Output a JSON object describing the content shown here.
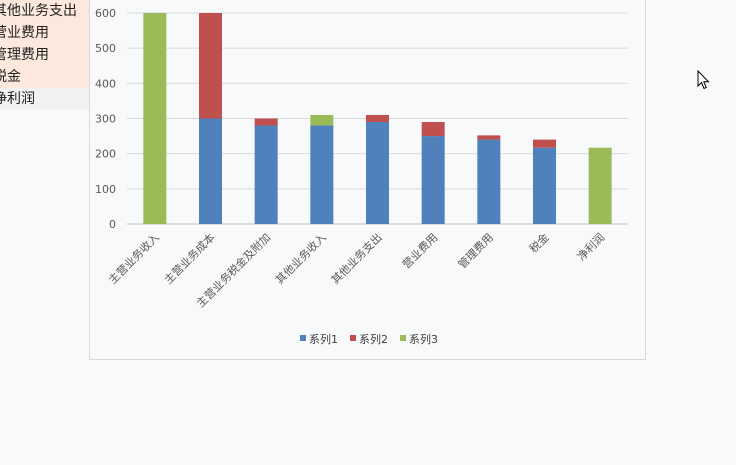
{
  "sheet": {
    "cells": [
      "其他业务支出",
      "营业费用",
      "管理费用",
      "税金",
      "净利润"
    ]
  },
  "chart_data": {
    "type": "bar",
    "stacked": true,
    "categories": [
      "主营业务收入",
      "主营业务成本",
      "主营业务税金及附加",
      "其他业务收入",
      "其他业务支出",
      "营业费用",
      "管理费用",
      "税金",
      "净利润"
    ],
    "series": [
      {
        "name": "系列1",
        "color": "#4f81bd",
        "values": [
          0,
          300,
          280,
          280,
          290,
          250,
          240,
          217,
          0
        ]
      },
      {
        "name": "系列2",
        "color": "#c0504d",
        "values": [
          0,
          300,
          20,
          0,
          20,
          40,
          12,
          23,
          0
        ]
      },
      {
        "name": "系列3",
        "color": "#9bbb59",
        "values": [
          600,
          0,
          0,
          30,
          0,
          0,
          0,
          0,
          217
        ]
      }
    ],
    "ylim": [
      0,
      600
    ],
    "yticks": [
      0,
      100,
      200,
      300,
      400,
      500,
      600
    ],
    "grid": true,
    "legend": "bottom"
  }
}
